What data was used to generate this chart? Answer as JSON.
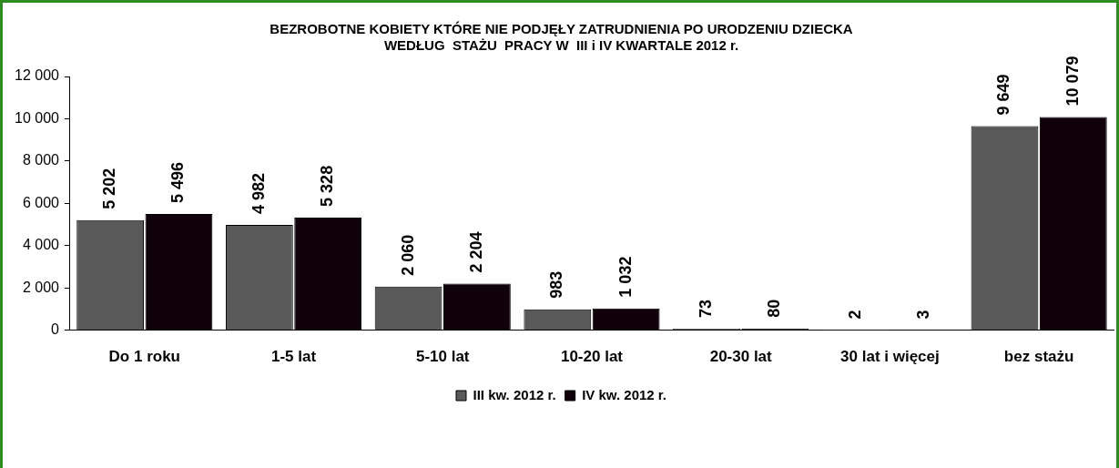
{
  "chart_data": {
    "type": "bar",
    "title": "BEZROBOTNE KOBIETY KTÓRE NIE PODJĘŁY ZATRUDNIENIA PO URODZENIU DZIECKA\nWEDŁUG  STAŻU  PRACY W  III i IV KWARTALE 2012 r.",
    "categories": [
      "Do 1 roku",
      "1-5 lat",
      "5-10 lat",
      "10-20 lat",
      "20-30 lat",
      "30 lat i więcej",
      "bez stażu"
    ],
    "series": [
      {
        "name": "III kw. 2012 r.",
        "color": "#595959",
        "values": [
          5202,
          4982,
          2060,
          983,
          73,
          2,
          9649
        ],
        "value_labels": [
          "5 202",
          "4 982",
          "2 060",
          "983",
          "73",
          "2",
          "9 649"
        ]
      },
      {
        "name": "IV kw. 2012 r.",
        "color": "#10000a",
        "values": [
          5496,
          5328,
          2204,
          1032,
          80,
          3,
          10079
        ],
        "value_labels": [
          "5 496",
          "5 328",
          "2 204",
          "1 032",
          "80",
          "3",
          "10 079"
        ]
      }
    ],
    "ylim": [
      0,
      12000
    ],
    "yticks": [
      {
        "value": 0,
        "label": "0"
      },
      {
        "value": 2000,
        "label": "2 000"
      },
      {
        "value": 4000,
        "label": "4 000"
      },
      {
        "value": 6000,
        "label": "6 000"
      },
      {
        "value": 8000,
        "label": "8 000"
      },
      {
        "value": 10000,
        "label": "10 000"
      },
      {
        "value": 12000,
        "label": "12 000"
      }
    ],
    "grid": false,
    "legend": "bottom"
  }
}
